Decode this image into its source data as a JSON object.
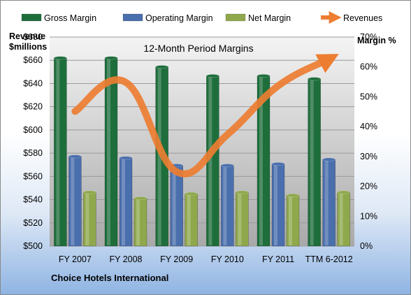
{
  "chart_data": {
    "type": "bar",
    "title": "12-Month Period Margins",
    "ylabel_left": "Revenue\n$millions",
    "ylabel_right": "Margin %",
    "footer": "Choice Hotels International",
    "categories": [
      "FY 2007",
      "FY 2008",
      "FY 2009",
      "FY 2010",
      "FY 2011",
      "TTM 6-2012"
    ],
    "left_axis": {
      "min": 500,
      "max": 680,
      "step": 20,
      "format": "$"
    },
    "right_axis": {
      "min": 0,
      "max": 70,
      "step": 10,
      "format": "%"
    },
    "grid": true,
    "legend_position": "top",
    "series": [
      {
        "name": "Gross Margin",
        "axis": "right",
        "kind": "bar",
        "color": "#1e6e3c",
        "values": [
          63,
          63,
          60,
          57,
          57,
          56
        ]
      },
      {
        "name": "Operating Margin",
        "axis": "right",
        "kind": "bar",
        "color": "#4a6fad",
        "values": [
          30,
          29.5,
          27,
          27,
          27.5,
          29
        ]
      },
      {
        "name": "Net Margin",
        "axis": "right",
        "kind": "bar",
        "color": "#8fa84c",
        "values": [
          18,
          16,
          17.5,
          18,
          17,
          18
        ]
      },
      {
        "name": "Revenues",
        "axis": "left",
        "kind": "line",
        "color": "#ed7d31",
        "values": [
          616,
          641,
          564,
          596,
          638,
          661
        ]
      }
    ]
  }
}
